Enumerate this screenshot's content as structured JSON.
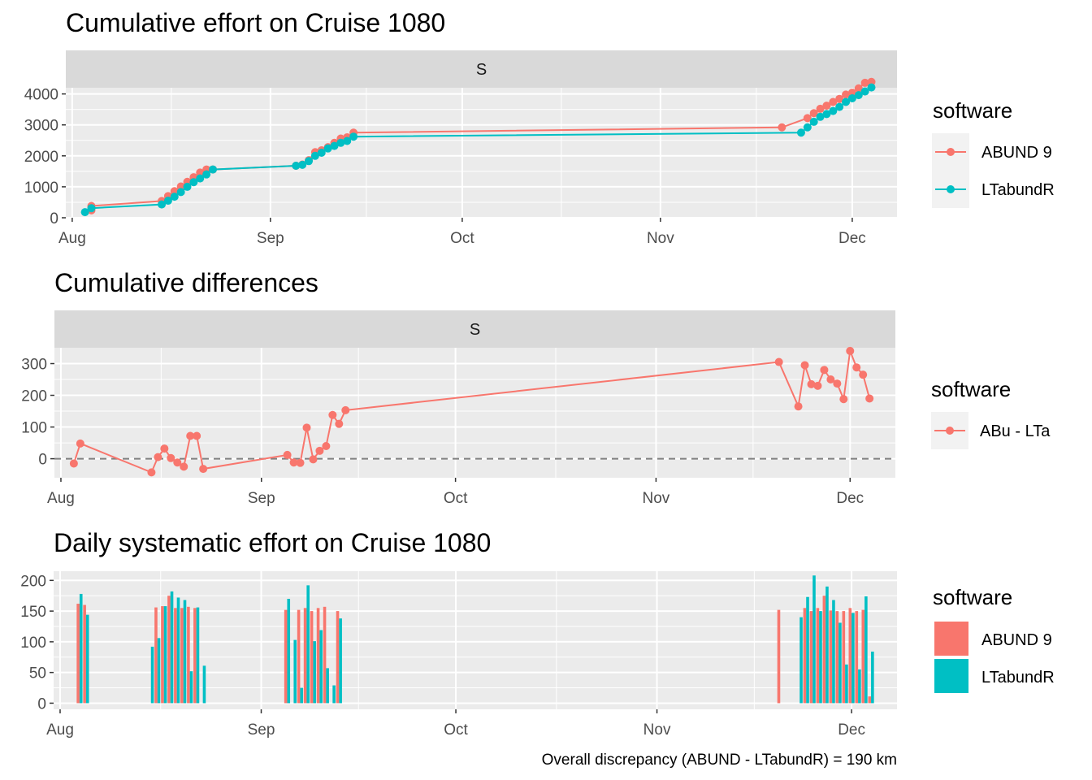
{
  "colors": {
    "abund": "#F8766D",
    "ltabundr": "#00BFC4",
    "panel_bg": "#EBEBEB",
    "strip_bg": "#D9D9D9",
    "grid": "#FFFFFF",
    "zero_line": "#808080"
  },
  "x_axis": {
    "type": "date",
    "range": [
      "2023-07-31",
      "2023-12-08"
    ],
    "ticks": [
      "2023-08-01",
      "2023-09-01",
      "2023-10-01",
      "2023-11-01",
      "2023-12-01"
    ],
    "tick_labels": [
      "Aug",
      "Sep",
      "Oct",
      "Nov",
      "Dec"
    ]
  },
  "caption": "Overall discrepancy (ABUND - LTabundR) = 190 km",
  "chart_data": [
    {
      "type": "line",
      "title": "Cumulative effort on Cruise 1080",
      "facet": "S",
      "ylim": [
        0,
        4200
      ],
      "y_ticks": [
        0,
        1000,
        2000,
        3000,
        4000
      ],
      "grid": true,
      "legend": {
        "title": "software",
        "entries": [
          "ABUND 9",
          "LTabundR"
        ],
        "placement": "right"
      },
      "series": [
        {
          "name": "ABUND 9",
          "color": "#F8766D",
          "x": [
            "2023-08-04",
            "2023-08-04",
            "2023-08-15",
            "2023-08-16",
            "2023-08-17",
            "2023-08-18",
            "2023-08-19",
            "2023-08-20",
            "2023-08-21",
            "2023-08-22",
            "2023-08-23",
            "2023-09-05",
            "2023-09-06",
            "2023-09-07",
            "2023-09-08",
            "2023-09-09",
            "2023-09-10",
            "2023-09-11",
            "2023-09-12",
            "2023-09-13",
            "2023-09-14",
            "2023-11-20",
            "2023-11-24",
            "2023-11-25",
            "2023-11-26",
            "2023-11-27",
            "2023-11-28",
            "2023-11-29",
            "2023-11-30",
            "2023-12-01",
            "2023-12-02",
            "2023-12-03",
            "2023-12-04"
          ],
          "y": [
            240,
            380,
            540,
            700,
            860,
            1010,
            1160,
            1310,
            1460,
            1560,
            1560,
            1680,
            1720,
            1860,
            2120,
            2180,
            2280,
            2420,
            2560,
            2600,
            2750,
            2920,
            3220,
            3380,
            3520,
            3620,
            3740,
            3840,
            3980,
            4040,
            4180,
            4360,
            4390
          ]
        },
        {
          "name": "LTabundR",
          "color": "#00BFC4",
          "x": [
            "2023-08-03",
            "2023-08-04",
            "2023-08-15",
            "2023-08-16",
            "2023-08-17",
            "2023-08-18",
            "2023-08-19",
            "2023-08-20",
            "2023-08-21",
            "2023-08-22",
            "2023-08-23",
            "2023-09-05",
            "2023-09-06",
            "2023-09-07",
            "2023-09-08",
            "2023-09-09",
            "2023-09-10",
            "2023-09-11",
            "2023-09-12",
            "2023-09-13",
            "2023-09-14",
            "2023-11-23",
            "2023-11-24",
            "2023-11-25",
            "2023-11-26",
            "2023-11-27",
            "2023-11-28",
            "2023-11-29",
            "2023-11-30",
            "2023-12-01",
            "2023-12-02",
            "2023-12-03",
            "2023-12-04"
          ],
          "y": [
            180,
            310,
            430,
            550,
            680,
            830,
            1000,
            1150,
            1270,
            1400,
            1560,
            1680,
            1710,
            1830,
            2000,
            2100,
            2240,
            2320,
            2420,
            2480,
            2620,
            2750,
            2920,
            3100,
            3260,
            3350,
            3450,
            3580,
            3740,
            3860,
            3960,
            4080,
            4210
          ]
        }
      ]
    },
    {
      "type": "line",
      "title": "Cumulative differences",
      "facet": "S",
      "ylim": [
        -60,
        350
      ],
      "y_ticks": [
        0,
        100,
        200,
        300
      ],
      "reference_line": 0,
      "grid": true,
      "legend": {
        "title": "software",
        "entries": [
          "ABu - LTa"
        ],
        "placement": "right"
      },
      "series": [
        {
          "name": "ABu - LTa",
          "color": "#F8766D",
          "x": [
            "2023-08-03",
            "2023-08-04",
            "2023-08-15",
            "2023-08-16",
            "2023-08-17",
            "2023-08-18",
            "2023-08-19",
            "2023-08-20",
            "2023-08-21",
            "2023-08-22",
            "2023-08-23",
            "2023-09-05",
            "2023-09-06",
            "2023-09-07",
            "2023-09-08",
            "2023-09-09",
            "2023-09-10",
            "2023-09-11",
            "2023-09-12",
            "2023-09-13",
            "2023-09-14",
            "2023-11-20",
            "2023-11-23",
            "2023-11-24",
            "2023-11-25",
            "2023-11-26",
            "2023-11-27",
            "2023-11-28",
            "2023-11-29",
            "2023-11-30",
            "2023-12-01",
            "2023-12-02",
            "2023-12-03",
            "2023-12-04"
          ],
          "y": [
            -15,
            48,
            -43,
            5,
            32,
            2,
            -12,
            -25,
            72,
            72,
            -32,
            12,
            -12,
            -13,
            98,
            -2,
            25,
            40,
            138,
            110,
            153,
            305,
            165,
            295,
            235,
            230,
            280,
            250,
            237,
            188,
            340,
            288,
            265,
            190
          ]
        }
      ]
    },
    {
      "type": "bar",
      "title": "Daily systematic effort on Cruise 1080",
      "ylim": [
        -10,
        215
      ],
      "y_ticks": [
        0,
        50,
        100,
        150,
        200
      ],
      "grid": true,
      "legend": {
        "title": "software",
        "entries": [
          "ABUND 9",
          "LTabundR"
        ],
        "placement": "right"
      },
      "categories": [
        "2023-08-04",
        "2023-08-05",
        "2023-08-15",
        "2023-08-16",
        "2023-08-17",
        "2023-08-18",
        "2023-08-19",
        "2023-08-20",
        "2023-08-21",
        "2023-08-22",
        "2023-08-23",
        "2023-09-05",
        "2023-09-06",
        "2023-09-07",
        "2023-09-08",
        "2023-09-09",
        "2023-09-10",
        "2023-09-11",
        "2023-09-12",
        "2023-09-13",
        "2023-11-20",
        "2023-11-23",
        "2023-11-24",
        "2023-11-25",
        "2023-11-26",
        "2023-11-27",
        "2023-11-28",
        "2023-11-29",
        "2023-11-30",
        "2023-12-01",
        "2023-12-02",
        "2023-12-03",
        "2023-12-04"
      ],
      "series": [
        {
          "name": "ABUND 9",
          "color": "#F8766D",
          "values": [
            162,
            160,
            0,
            156,
            158,
            175,
            155,
            155,
            157,
            155,
            0,
            152,
            0,
            152,
            155,
            150,
            155,
            157,
            0,
            150,
            152,
            0,
            155,
            150,
            155,
            175,
            151,
            150,
            150,
            155,
            150,
            152,
            11
          ]
        },
        {
          "name": "LTabundR",
          "color": "#00BFC4",
          "values": [
            178,
            144,
            92,
            106,
            158,
            182,
            172,
            168,
            52,
            156,
            61,
            170,
            103,
            25,
            192,
            101,
            119,
            57,
            29,
            138,
            0,
            140,
            173,
            208,
            150,
            190,
            168,
            131,
            63,
            147,
            55,
            174,
            84
          ]
        }
      ]
    }
  ]
}
